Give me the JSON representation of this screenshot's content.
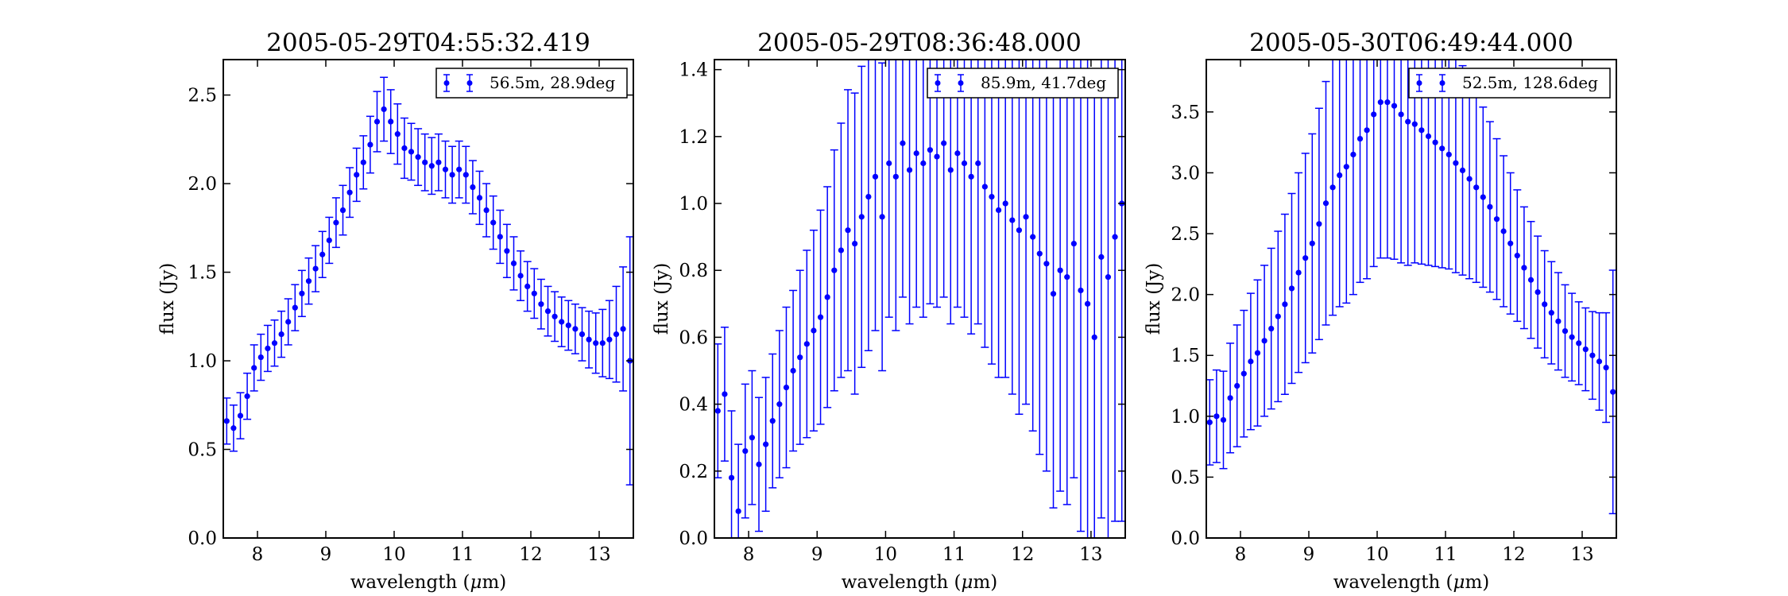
{
  "chart_data": [
    {
      "type": "scatter",
      "title": "2005-05-29T04:55:32.419",
      "xlabel_prefix": "wavelength (",
      "xlabel_symbol": "μ",
      "xlabel_suffix": "m)",
      "ylabel": "flux (Jy)",
      "xlim": [
        7.5,
        13.5
      ],
      "ylim": [
        0.0,
        2.7
      ],
      "xticks": [
        "8",
        "9",
        "10",
        "11",
        "12",
        "13"
      ],
      "yticks": [
        "0.0",
        "0.5",
        "1.0",
        "1.5",
        "2.0",
        "2.5"
      ],
      "legend_loc": "upper right",
      "grid": false,
      "color": "#0000ff",
      "series": [
        {
          "name": "56.5m, 28.9deg",
          "x": [
            7.55,
            7.65,
            7.75,
            7.85,
            7.95,
            8.05,
            8.15,
            8.25,
            8.35,
            8.45,
            8.55,
            8.65,
            8.75,
            8.85,
            8.95,
            9.05,
            9.15,
            9.25,
            9.35,
            9.45,
            9.55,
            9.65,
            9.75,
            9.85,
            9.95,
            10.05,
            10.15,
            10.25,
            10.35,
            10.45,
            10.55,
            10.65,
            10.75,
            10.85,
            10.95,
            11.05,
            11.15,
            11.25,
            11.35,
            11.45,
            11.55,
            11.65,
            11.75,
            11.85,
            11.95,
            12.05,
            12.15,
            12.25,
            12.35,
            12.45,
            12.55,
            12.65,
            12.75,
            12.85,
            12.95,
            13.05,
            13.15,
            13.25,
            13.35,
            13.45
          ],
          "y": [
            0.66,
            0.62,
            0.69,
            0.8,
            0.96,
            1.02,
            1.07,
            1.1,
            1.15,
            1.22,
            1.3,
            1.38,
            1.45,
            1.52,
            1.6,
            1.68,
            1.78,
            1.85,
            1.95,
            2.05,
            2.12,
            2.22,
            2.35,
            2.42,
            2.35,
            2.28,
            2.2,
            2.18,
            2.15,
            2.12,
            2.1,
            2.12,
            2.08,
            2.05,
            2.08,
            2.05,
            1.98,
            1.92,
            1.85,
            1.78,
            1.7,
            1.62,
            1.55,
            1.48,
            1.42,
            1.38,
            1.32,
            1.28,
            1.25,
            1.22,
            1.2,
            1.18,
            1.15,
            1.12,
            1.1,
            1.1,
            1.12,
            1.15,
            1.18,
            1.0
          ],
          "yerr": [
            0.13,
            0.13,
            0.13,
            0.13,
            0.13,
            0.13,
            0.13,
            0.13,
            0.13,
            0.13,
            0.13,
            0.13,
            0.13,
            0.13,
            0.13,
            0.13,
            0.14,
            0.14,
            0.14,
            0.15,
            0.15,
            0.16,
            0.17,
            0.18,
            0.18,
            0.17,
            0.17,
            0.16,
            0.16,
            0.16,
            0.16,
            0.16,
            0.16,
            0.16,
            0.16,
            0.16,
            0.15,
            0.15,
            0.15,
            0.15,
            0.15,
            0.15,
            0.15,
            0.14,
            0.14,
            0.14,
            0.14,
            0.14,
            0.14,
            0.14,
            0.14,
            0.14,
            0.15,
            0.16,
            0.17,
            0.19,
            0.22,
            0.27,
            0.35,
            0.7
          ]
        }
      ]
    },
    {
      "type": "scatter",
      "title": "2005-05-29T08:36:48.000",
      "xlabel_prefix": "wavelength (",
      "xlabel_symbol": "μ",
      "xlabel_suffix": "m)",
      "ylabel": "flux (Jy)",
      "xlim": [
        7.5,
        13.5
      ],
      "ylim": [
        0.0,
        1.43
      ],
      "xticks": [
        "8",
        "9",
        "10",
        "11",
        "12",
        "13"
      ],
      "yticks": [
        "0.0",
        "0.2",
        "0.4",
        "0.6",
        "0.8",
        "1.0",
        "1.2",
        "1.4"
      ],
      "legend_loc": "upper right",
      "grid": false,
      "color": "#0000ff",
      "series": [
        {
          "name": "85.9m, 41.7deg",
          "x": [
            7.55,
            7.65,
            7.75,
            7.85,
            7.95,
            8.05,
            8.15,
            8.25,
            8.35,
            8.45,
            8.55,
            8.65,
            8.75,
            8.85,
            8.95,
            9.05,
            9.15,
            9.25,
            9.35,
            9.45,
            9.55,
            9.65,
            9.75,
            9.85,
            9.95,
            10.05,
            10.15,
            10.25,
            10.35,
            10.45,
            10.55,
            10.65,
            10.75,
            10.85,
            10.95,
            11.05,
            11.15,
            11.25,
            11.35,
            11.45,
            11.55,
            11.65,
            11.75,
            11.85,
            11.95,
            12.05,
            12.15,
            12.25,
            12.35,
            12.45,
            12.55,
            12.65,
            12.75,
            12.85,
            12.95,
            13.05,
            13.15,
            13.25,
            13.35,
            13.45
          ],
          "y": [
            0.38,
            0.43,
            0.18,
            0.08,
            0.26,
            0.3,
            0.22,
            0.28,
            0.35,
            0.4,
            0.45,
            0.5,
            0.54,
            0.58,
            0.62,
            0.66,
            0.72,
            0.8,
            0.86,
            0.92,
            0.88,
            0.96,
            1.02,
            1.08,
            0.96,
            1.12,
            1.08,
            1.18,
            1.1,
            1.15,
            1.12,
            1.16,
            1.14,
            1.18,
            1.1,
            1.15,
            1.12,
            1.08,
            1.12,
            1.05,
            1.02,
            0.98,
            1.0,
            0.95,
            0.92,
            0.96,
            0.9,
            0.85,
            0.82,
            0.73,
            0.8,
            0.78,
            0.88,
            0.74,
            0.7,
            0.6,
            0.84,
            0.78,
            0.9,
            1.0
          ],
          "yerr": [
            0.2,
            0.2,
            0.2,
            0.2,
            0.2,
            0.2,
            0.2,
            0.2,
            0.2,
            0.22,
            0.24,
            0.24,
            0.26,
            0.28,
            0.3,
            0.32,
            0.33,
            0.36,
            0.38,
            0.42,
            0.45,
            0.45,
            0.46,
            0.46,
            0.46,
            0.46,
            0.46,
            0.46,
            0.46,
            0.46,
            0.46,
            0.46,
            0.45,
            0.46,
            0.46,
            0.46,
            0.46,
            0.47,
            0.48,
            0.48,
            0.5,
            0.5,
            0.52,
            0.52,
            0.55,
            0.56,
            0.58,
            0.6,
            0.62,
            0.64,
            0.66,
            0.68,
            0.7,
            0.72,
            0.74,
            0.76,
            0.78,
            0.8,
            0.85,
            0.95
          ]
        }
      ]
    },
    {
      "type": "scatter",
      "title": "2005-05-30T06:49:44.000",
      "xlabel_prefix": "wavelength (",
      "xlabel_symbol": "μ",
      "xlabel_suffix": "m)",
      "ylabel": "flux (Jy)",
      "xlim": [
        7.5,
        13.5
      ],
      "ylim": [
        0.0,
        3.93
      ],
      "xticks": [
        "8",
        "9",
        "10",
        "11",
        "12",
        "13"
      ],
      "yticks": [
        "0.0",
        "0.5",
        "1.0",
        "1.5",
        "2.0",
        "2.5",
        "3.0",
        "3.5"
      ],
      "legend_loc": "upper right",
      "grid": false,
      "color": "#0000ff",
      "series": [
        {
          "name": "52.5m, 128.6deg",
          "x": [
            7.55,
            7.65,
            7.75,
            7.85,
            7.95,
            8.05,
            8.15,
            8.25,
            8.35,
            8.45,
            8.55,
            8.65,
            8.75,
            8.85,
            8.95,
            9.05,
            9.15,
            9.25,
            9.35,
            9.45,
            9.55,
            9.65,
            9.75,
            9.85,
            9.95,
            10.05,
            10.15,
            10.25,
            10.35,
            10.45,
            10.55,
            10.65,
            10.75,
            10.85,
            10.95,
            11.05,
            11.15,
            11.25,
            11.35,
            11.45,
            11.55,
            11.65,
            11.75,
            11.85,
            11.95,
            12.05,
            12.15,
            12.25,
            12.35,
            12.45,
            12.55,
            12.65,
            12.75,
            12.85,
            12.95,
            13.05,
            13.15,
            13.25,
            13.35,
            13.45
          ],
          "y": [
            0.95,
            1.0,
            0.97,
            1.15,
            1.25,
            1.35,
            1.45,
            1.52,
            1.62,
            1.72,
            1.82,
            1.92,
            2.05,
            2.18,
            2.3,
            2.42,
            2.58,
            2.75,
            2.88,
            2.98,
            3.05,
            3.15,
            3.28,
            3.35,
            3.48,
            3.58,
            3.58,
            3.55,
            3.48,
            3.42,
            3.4,
            3.35,
            3.3,
            3.25,
            3.2,
            3.15,
            3.08,
            3.02,
            2.95,
            2.88,
            2.8,
            2.72,
            2.62,
            2.52,
            2.42,
            2.32,
            2.22,
            2.12,
            2.02,
            1.92,
            1.85,
            1.78,
            1.7,
            1.65,
            1.6,
            1.55,
            1.5,
            1.45,
            1.4,
            1.2
          ],
          "yerr": [
            0.35,
            0.38,
            0.4,
            0.45,
            0.5,
            0.52,
            0.56,
            0.6,
            0.62,
            0.66,
            0.7,
            0.74,
            0.78,
            0.82,
            0.86,
            0.9,
            0.95,
            1.0,
            1.05,
            1.08,
            1.12,
            1.15,
            1.18,
            1.22,
            1.25,
            1.28,
            1.28,
            1.26,
            1.22,
            1.18,
            1.14,
            1.1,
            1.06,
            1.02,
            0.98,
            0.94,
            0.9,
            0.86,
            0.82,
            0.78,
            0.74,
            0.7,
            0.66,
            0.62,
            0.58,
            0.54,
            0.5,
            0.48,
            0.46,
            0.44,
            0.42,
            0.4,
            0.38,
            0.36,
            0.34,
            0.34,
            0.36,
            0.4,
            0.45,
            1.0
          ]
        }
      ]
    }
  ]
}
